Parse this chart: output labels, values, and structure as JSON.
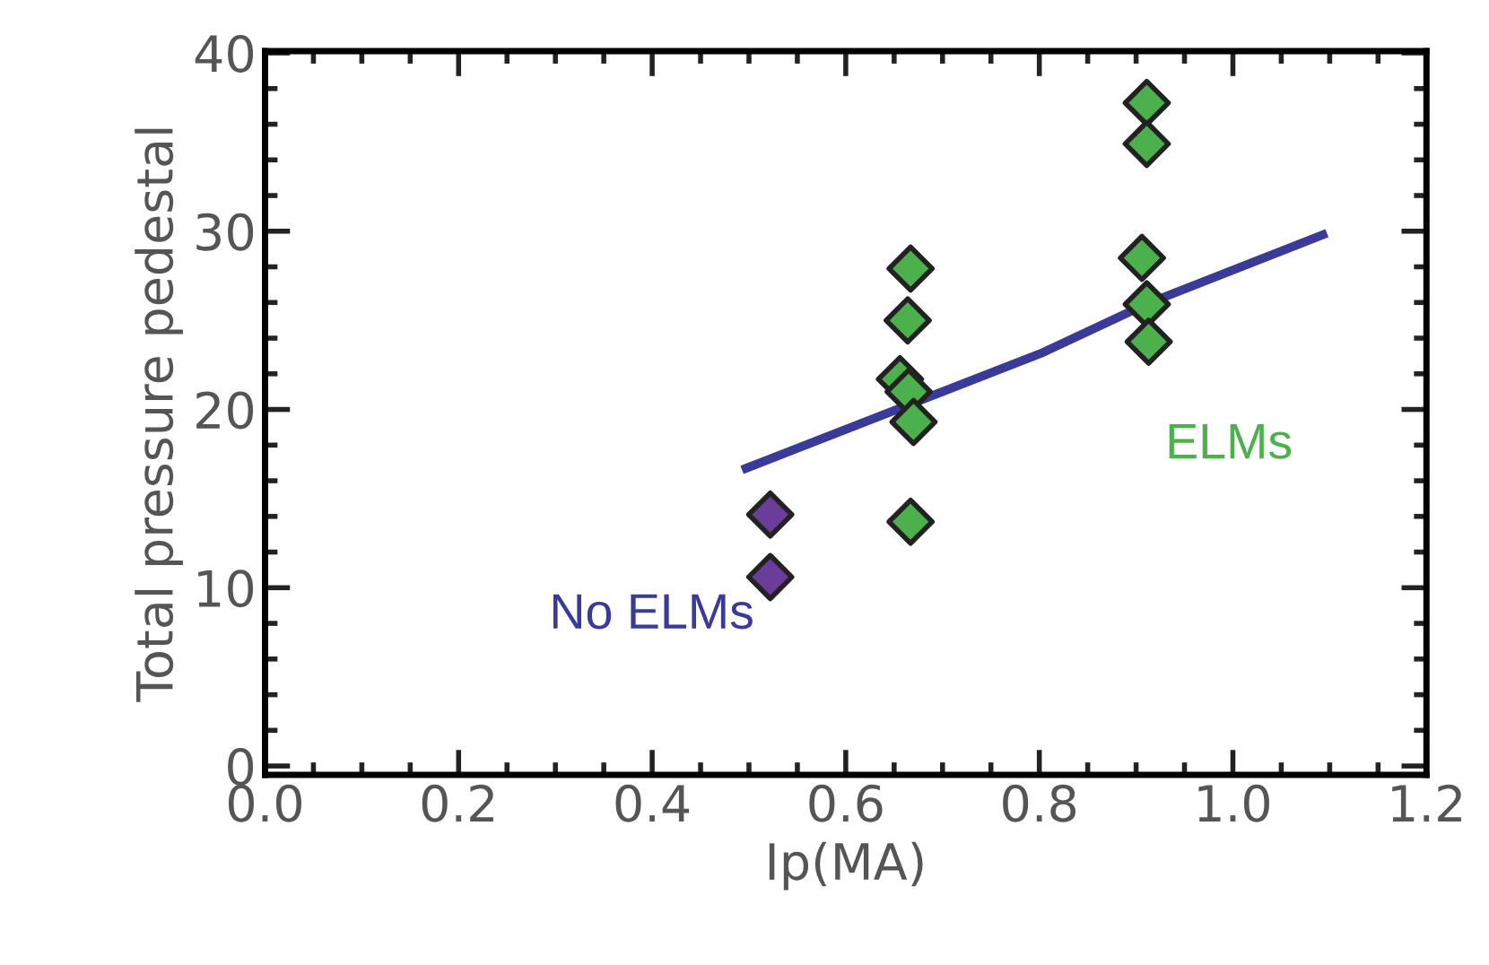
{
  "chart_data": {
    "type": "scatter",
    "xlabel": "Ip(MA)",
    "ylabel": "Total pressure pedestal",
    "xlim": [
      0.0,
      1.2
    ],
    "ylim": [
      -0.5,
      40.1
    ],
    "xticks": [
      {
        "value": 0.0,
        "label": "0.0"
      },
      {
        "value": 0.2,
        "label": "0.2"
      },
      {
        "value": 0.4,
        "label": "0.4"
      },
      {
        "value": 0.6,
        "label": "0.6"
      },
      {
        "value": 0.8,
        "label": "0.8"
      },
      {
        "value": 1.0,
        "label": "1.0"
      },
      {
        "value": 1.2,
        "label": "1.2"
      }
    ],
    "yticks": [
      0,
      10,
      20,
      30,
      40
    ],
    "grid": false,
    "marker": "diamond",
    "series": [
      {
        "color": "#6a3d9a",
        "x": [
          0.522,
          0.522
        ],
        "values": [
          14.1,
          10.6
        ]
      },
      {
        "color": "#4cb04c",
        "x": [
          0.667,
          0.664,
          0.656,
          0.665,
          0.67,
          0.667,
          0.911,
          0.911,
          0.906,
          0.911,
          0.913
        ],
        "values": [
          27.9,
          25.0,
          21.7,
          21.0,
          19.3,
          13.7,
          37.2,
          34.9,
          28.5,
          25.9,
          23.8
        ]
      },
      {
        "type": "line",
        "color": "#3a3a98",
        "x": [
          0.497,
          0.804,
          0.91,
          1.093
        ],
        "values": [
          16.7,
          23.2,
          25.9,
          29.8
        ],
        "marker": "none"
      }
    ],
    "annotations": [
      "ELMs",
      "No ELMs"
    ]
  }
}
